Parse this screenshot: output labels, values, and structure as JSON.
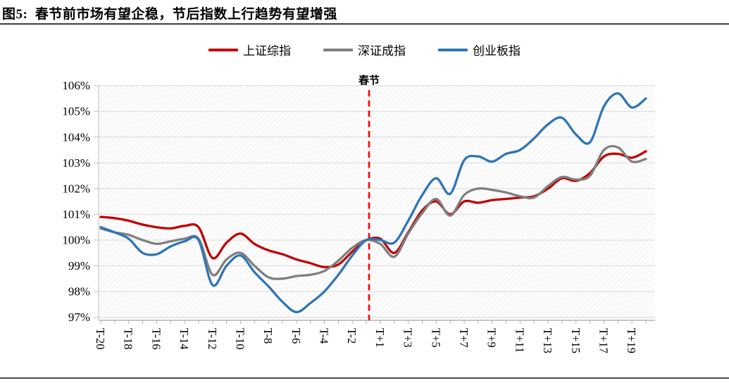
{
  "figure": {
    "title": "图5:  春节前市场有望企稳，节后指数上行趋势有望增强"
  },
  "chart_data": {
    "type": "line",
    "title": "春节前市场有望企稳，节后指数上行趋势有望增强",
    "legend_position": "top",
    "grid": "horizontal",
    "plot_background": "diagonal-hatch",
    "y_axis": {
      "unit": "%",
      "min": 97,
      "max": 106,
      "step": 1,
      "tick_labels": [
        "106%",
        "105%",
        "104%",
        "103%",
        "102%",
        "101%",
        "100%",
        "99%",
        "98%",
        "97%"
      ]
    },
    "x_axis": {
      "note": "trading days relative to Spring Festival, every 2nd day labeled",
      "tick_labels": [
        "T-20",
        "T-18",
        "T-16",
        "T-14",
        "T-12",
        "T-10",
        "T-8",
        "T-6",
        "T-4",
        "T-2",
        "T+1",
        "T+3",
        "T+5",
        "T+7",
        "T+9",
        "T+11",
        "T+13",
        "T+15",
        "T+17",
        "T+19"
      ]
    },
    "categories": [
      "T-20",
      "T-19",
      "T-18",
      "T-17",
      "T-16",
      "T-15",
      "T-14",
      "T-13",
      "T-12",
      "T-11",
      "T-10",
      "T-9",
      "T-8",
      "T-7",
      "T-6",
      "T-5",
      "T-4",
      "T-3",
      "T-2",
      "T-1",
      "T+1",
      "T+2",
      "T+3",
      "T+4",
      "T+5",
      "T+6",
      "T+7",
      "T+8",
      "T+9",
      "T+10",
      "T+11",
      "T+12",
      "T+13",
      "T+14",
      "T+15",
      "T+16",
      "T+17",
      "T+18",
      "T+19",
      "T+20"
    ],
    "series": [
      {
        "name": "上证综指",
        "color": "#C00000",
        "values": [
          100.9,
          100.85,
          100.75,
          100.6,
          100.5,
          100.45,
          100.55,
          100.5,
          99.3,
          99.9,
          100.25,
          99.85,
          99.6,
          99.45,
          99.25,
          99.1,
          98.95,
          99.05,
          99.55,
          100.0,
          100.05,
          99.5,
          100.3,
          101.15,
          101.5,
          101.0,
          101.5,
          101.45,
          101.55,
          101.6,
          101.65,
          101.7,
          102.0,
          102.4,
          102.3,
          102.6,
          103.25,
          103.35,
          103.2,
          103.45
        ]
      },
      {
        "name": "深证成指",
        "color": "#7F7F7F",
        "values": [
          100.45,
          100.3,
          100.2,
          100.0,
          99.85,
          99.95,
          100.05,
          100.05,
          98.65,
          99.25,
          99.5,
          99.0,
          98.55,
          98.5,
          98.6,
          98.65,
          98.8,
          99.2,
          99.7,
          100.0,
          99.85,
          99.35,
          100.25,
          101.05,
          101.6,
          100.95,
          101.75,
          102.0,
          101.95,
          101.85,
          101.7,
          101.65,
          102.1,
          102.45,
          102.35,
          102.5,
          103.5,
          103.6,
          103.05,
          103.15
        ]
      },
      {
        "name": "创业板指",
        "color": "#2E75B6",
        "values": [
          100.5,
          100.3,
          100.05,
          99.5,
          99.45,
          99.75,
          99.95,
          100.0,
          98.25,
          99.0,
          99.4,
          98.75,
          98.2,
          97.6,
          97.2,
          97.55,
          98.0,
          98.65,
          99.4,
          100.0,
          100.0,
          99.9,
          100.75,
          101.75,
          102.4,
          101.8,
          103.1,
          103.25,
          103.05,
          103.35,
          103.5,
          103.95,
          104.5,
          104.75,
          104.1,
          103.8,
          105.2,
          105.7,
          105.15,
          105.5
        ]
      }
    ],
    "annotations": [
      {
        "type": "vline",
        "label": "春节",
        "position_between": [
          "T-1",
          "T+1"
        ],
        "color": "#FF0000",
        "style": "dashed"
      }
    ]
  }
}
